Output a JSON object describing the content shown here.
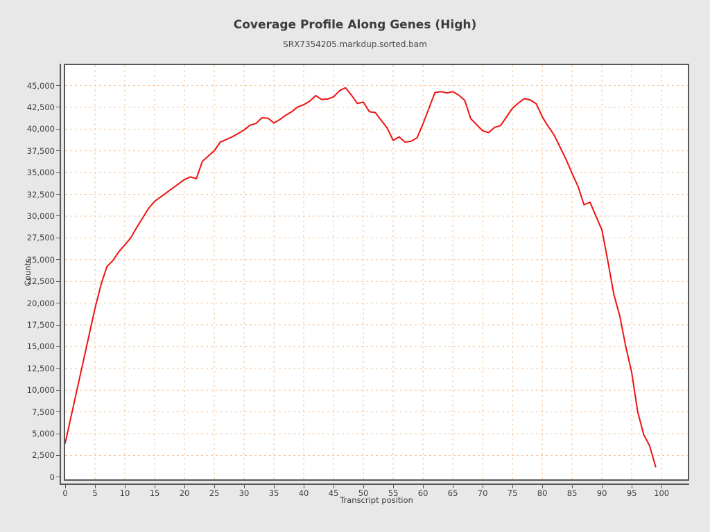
{
  "chart_data": {
    "type": "line",
    "title": "Coverage Profile Along Genes (High)",
    "subtitle": "SRX7354205.markdup.sorted.bam",
    "xlabel": "Transcript position",
    "ylabel": "Counts",
    "x_note": "x values are integer transcript position percentiles 0-99 (index of values array)",
    "series": [
      {
        "name": "coverage",
        "color": "#ee1111",
        "values": [
          3900,
          7000,
          10100,
          13200,
          16300,
          19400,
          22100,
          24200,
          24900,
          25900,
          26700,
          27500,
          28700,
          29800,
          30900,
          31700,
          32200,
          32700,
          33200,
          33700,
          34200,
          34500,
          34300,
          36300,
          36900,
          37500,
          38500,
          38800,
          39100,
          39500,
          39900,
          40450,
          40650,
          41300,
          41250,
          40700,
          41100,
          41600,
          42000,
          42550,
          42800,
          43200,
          43850,
          43400,
          43450,
          43700,
          44400,
          44750,
          43900,
          42950,
          43100,
          42000,
          41900,
          41000,
          40100,
          38700,
          39100,
          38500,
          38600,
          39000,
          40600,
          42400,
          44200,
          44300,
          44150,
          44300,
          43900,
          43300,
          41200,
          40500,
          39800,
          39600,
          40200,
          40400,
          41400,
          42400,
          43000,
          43500,
          43350,
          42900,
          41400,
          40300,
          39300,
          37900,
          36500,
          34900,
          33400,
          31300,
          31600,
          30000,
          28400,
          24800,
          21000,
          18500,
          15000,
          12000,
          7500,
          4900,
          3600,
          1200
        ]
      }
    ],
    "xlim": [
      0,
      104.4
    ],
    "ylim": [
      -250,
      47350
    ],
    "xtick_values": [
      0,
      5,
      10,
      15,
      20,
      25,
      30,
      35,
      40,
      45,
      50,
      55,
      60,
      65,
      70,
      75,
      80,
      85,
      90,
      95,
      100
    ],
    "xtick_labels": [
      "0",
      "5",
      "10",
      "15",
      "20",
      "25",
      "30",
      "35",
      "40",
      "45",
      "50",
      "55",
      "60",
      "65",
      "70",
      "75",
      "80",
      "85",
      "90",
      "95",
      "100"
    ],
    "ytick_values": [
      0,
      2500,
      5000,
      7500,
      10000,
      12500,
      15000,
      17500,
      20000,
      22500,
      25000,
      27500,
      30000,
      32500,
      35000,
      37500,
      40000,
      42500,
      45000
    ],
    "ytick_labels": [
      "0",
      "2,500",
      "5,000",
      "7,500",
      "10,000",
      "12,500",
      "15,000",
      "17,500",
      "20,000",
      "22,500",
      "25,000",
      "27,500",
      "30,000",
      "32,500",
      "35,000",
      "37,500",
      "40,000",
      "42,500",
      "45,000"
    ],
    "grid": {
      "show": true,
      "style": "dashed",
      "color": "#f2c49b"
    },
    "legend": "none",
    "colors": {
      "figure_bg": "#e8e8e8",
      "plot_bg": "#ffffff",
      "axis": "#575757",
      "text": "#3c3c3c",
      "line": "#ee1111",
      "grid": "#f2c49b"
    }
  }
}
